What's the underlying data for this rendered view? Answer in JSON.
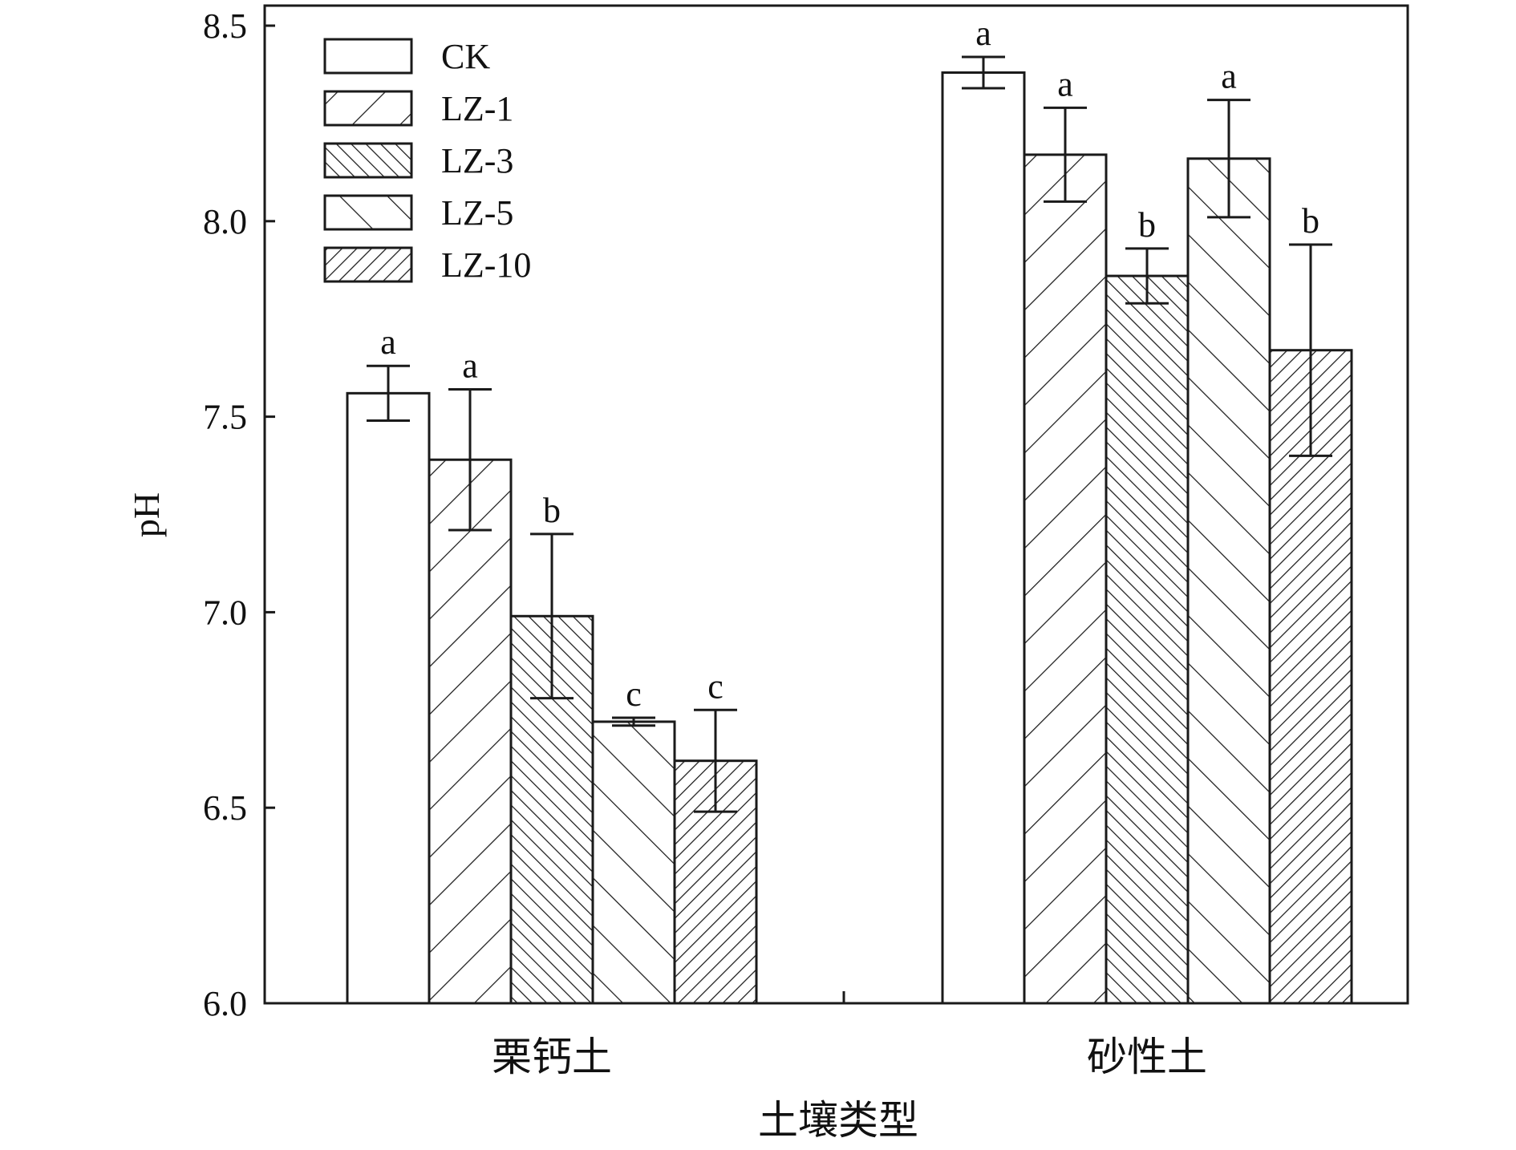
{
  "colors": {
    "ink": "#1a1a1a",
    "background": "#ffffff"
  },
  "chart_data": {
    "type": "bar",
    "title": "",
    "xlabel": "土壤类型",
    "ylabel": "pH",
    "ylim": [
      6.0,
      8.5
    ],
    "yticks": [
      "6.0",
      "6.5",
      "7.0",
      "7.5",
      "8.0",
      "8.5"
    ],
    "grid": false,
    "legend_position": "top-left",
    "categories": [
      "栗钙土",
      "砂性土"
    ],
    "series": [
      {
        "name": "CK",
        "pattern": "none",
        "values": [
          7.56,
          8.38
        ],
        "errors": [
          0.07,
          0.04
        ],
        "letters": [
          "a",
          "a"
        ]
      },
      {
        "name": "LZ-1",
        "pattern": "backslash-wide",
        "values": [
          7.39,
          8.17
        ],
        "errors": [
          0.18,
          0.12
        ],
        "letters": [
          "a",
          "a"
        ]
      },
      {
        "name": "LZ-3",
        "pattern": "slash-dense",
        "values": [
          6.99,
          7.86
        ],
        "errors": [
          0.21,
          0.07
        ],
        "letters": [
          "b",
          "b"
        ]
      },
      {
        "name": "LZ-5",
        "pattern": "slash-wide",
        "values": [
          6.72,
          8.16
        ],
        "errors": [
          0.01,
          0.15
        ],
        "letters": [
          "c",
          "a"
        ]
      },
      {
        "name": "LZ-10",
        "pattern": "backslash-dense",
        "values": [
          6.62,
          7.67
        ],
        "errors": [
          0.13,
          0.27
        ],
        "letters": [
          "c",
          "b"
        ]
      }
    ]
  }
}
